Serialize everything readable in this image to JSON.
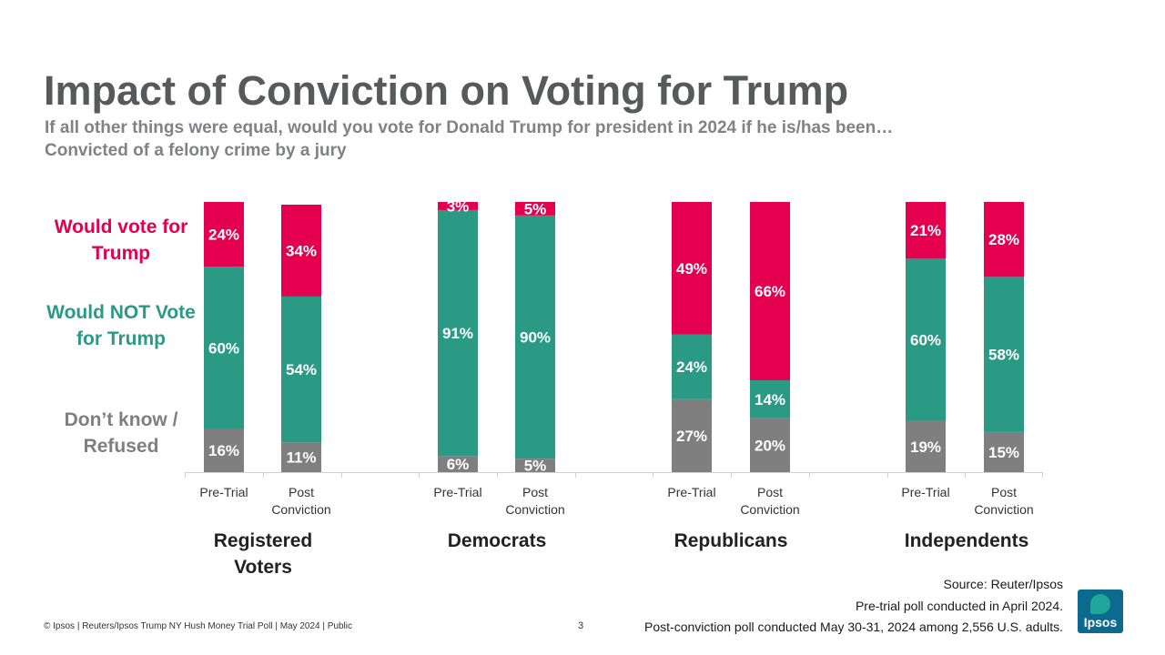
{
  "title": "Impact of Conviction on Voting for Trump",
  "subtitle": {
    "line1": "If all other things were equal, would you vote for Donald Trump for president in 2024 if he is/has been…",
    "line2": "Convicted of a felony crime by a jury"
  },
  "legend": {
    "trump": "Would vote for Trump",
    "not_trump": "Would NOT Vote for Trump",
    "dont_know": "Don’t know / Refused"
  },
  "colors": {
    "trump": "#e4004f",
    "not_trump": "#2a9a84",
    "dont_know": "#7f7f7f"
  },
  "chart_data": {
    "type": "bar",
    "stacked": true,
    "percent_stacked": true,
    "ylim": [
      0,
      100
    ],
    "groups": [
      "Registered Voters",
      "Democrats",
      "Republicans",
      "Independents"
    ],
    "categories": [
      "Pre-Trial",
      "Post Conviction",
      "Pre-Trial",
      "Post Conviction",
      "Pre-Trial",
      "Post Conviction",
      "Pre-Trial",
      "Post Conviction"
    ],
    "series": [
      {
        "name": "Don’t know / Refused",
        "values": [
          16,
          11,
          6,
          5,
          27,
          20,
          19,
          15
        ]
      },
      {
        "name": "Would NOT Vote for Trump",
        "values": [
          60,
          54,
          91,
          90,
          24,
          14,
          60,
          58
        ]
      },
      {
        "name": "Would vote for Trump",
        "values": [
          24,
          34,
          3,
          5,
          49,
          66,
          21,
          28
        ]
      }
    ]
  },
  "source": {
    "line1": "Source: Reuter/Ipsos",
    "line2": "Pre-trial poll conducted in April 2024.",
    "line3": "Post-conviction poll conducted May 30-31, 2024 among 2,556 U.S. adults."
  },
  "footer": "© Ipsos | Reuters/Ipsos Trump NY Hush Money Trial Poll | May 2024 | Public",
  "page_number": "3",
  "logo_text": "Ipsos"
}
